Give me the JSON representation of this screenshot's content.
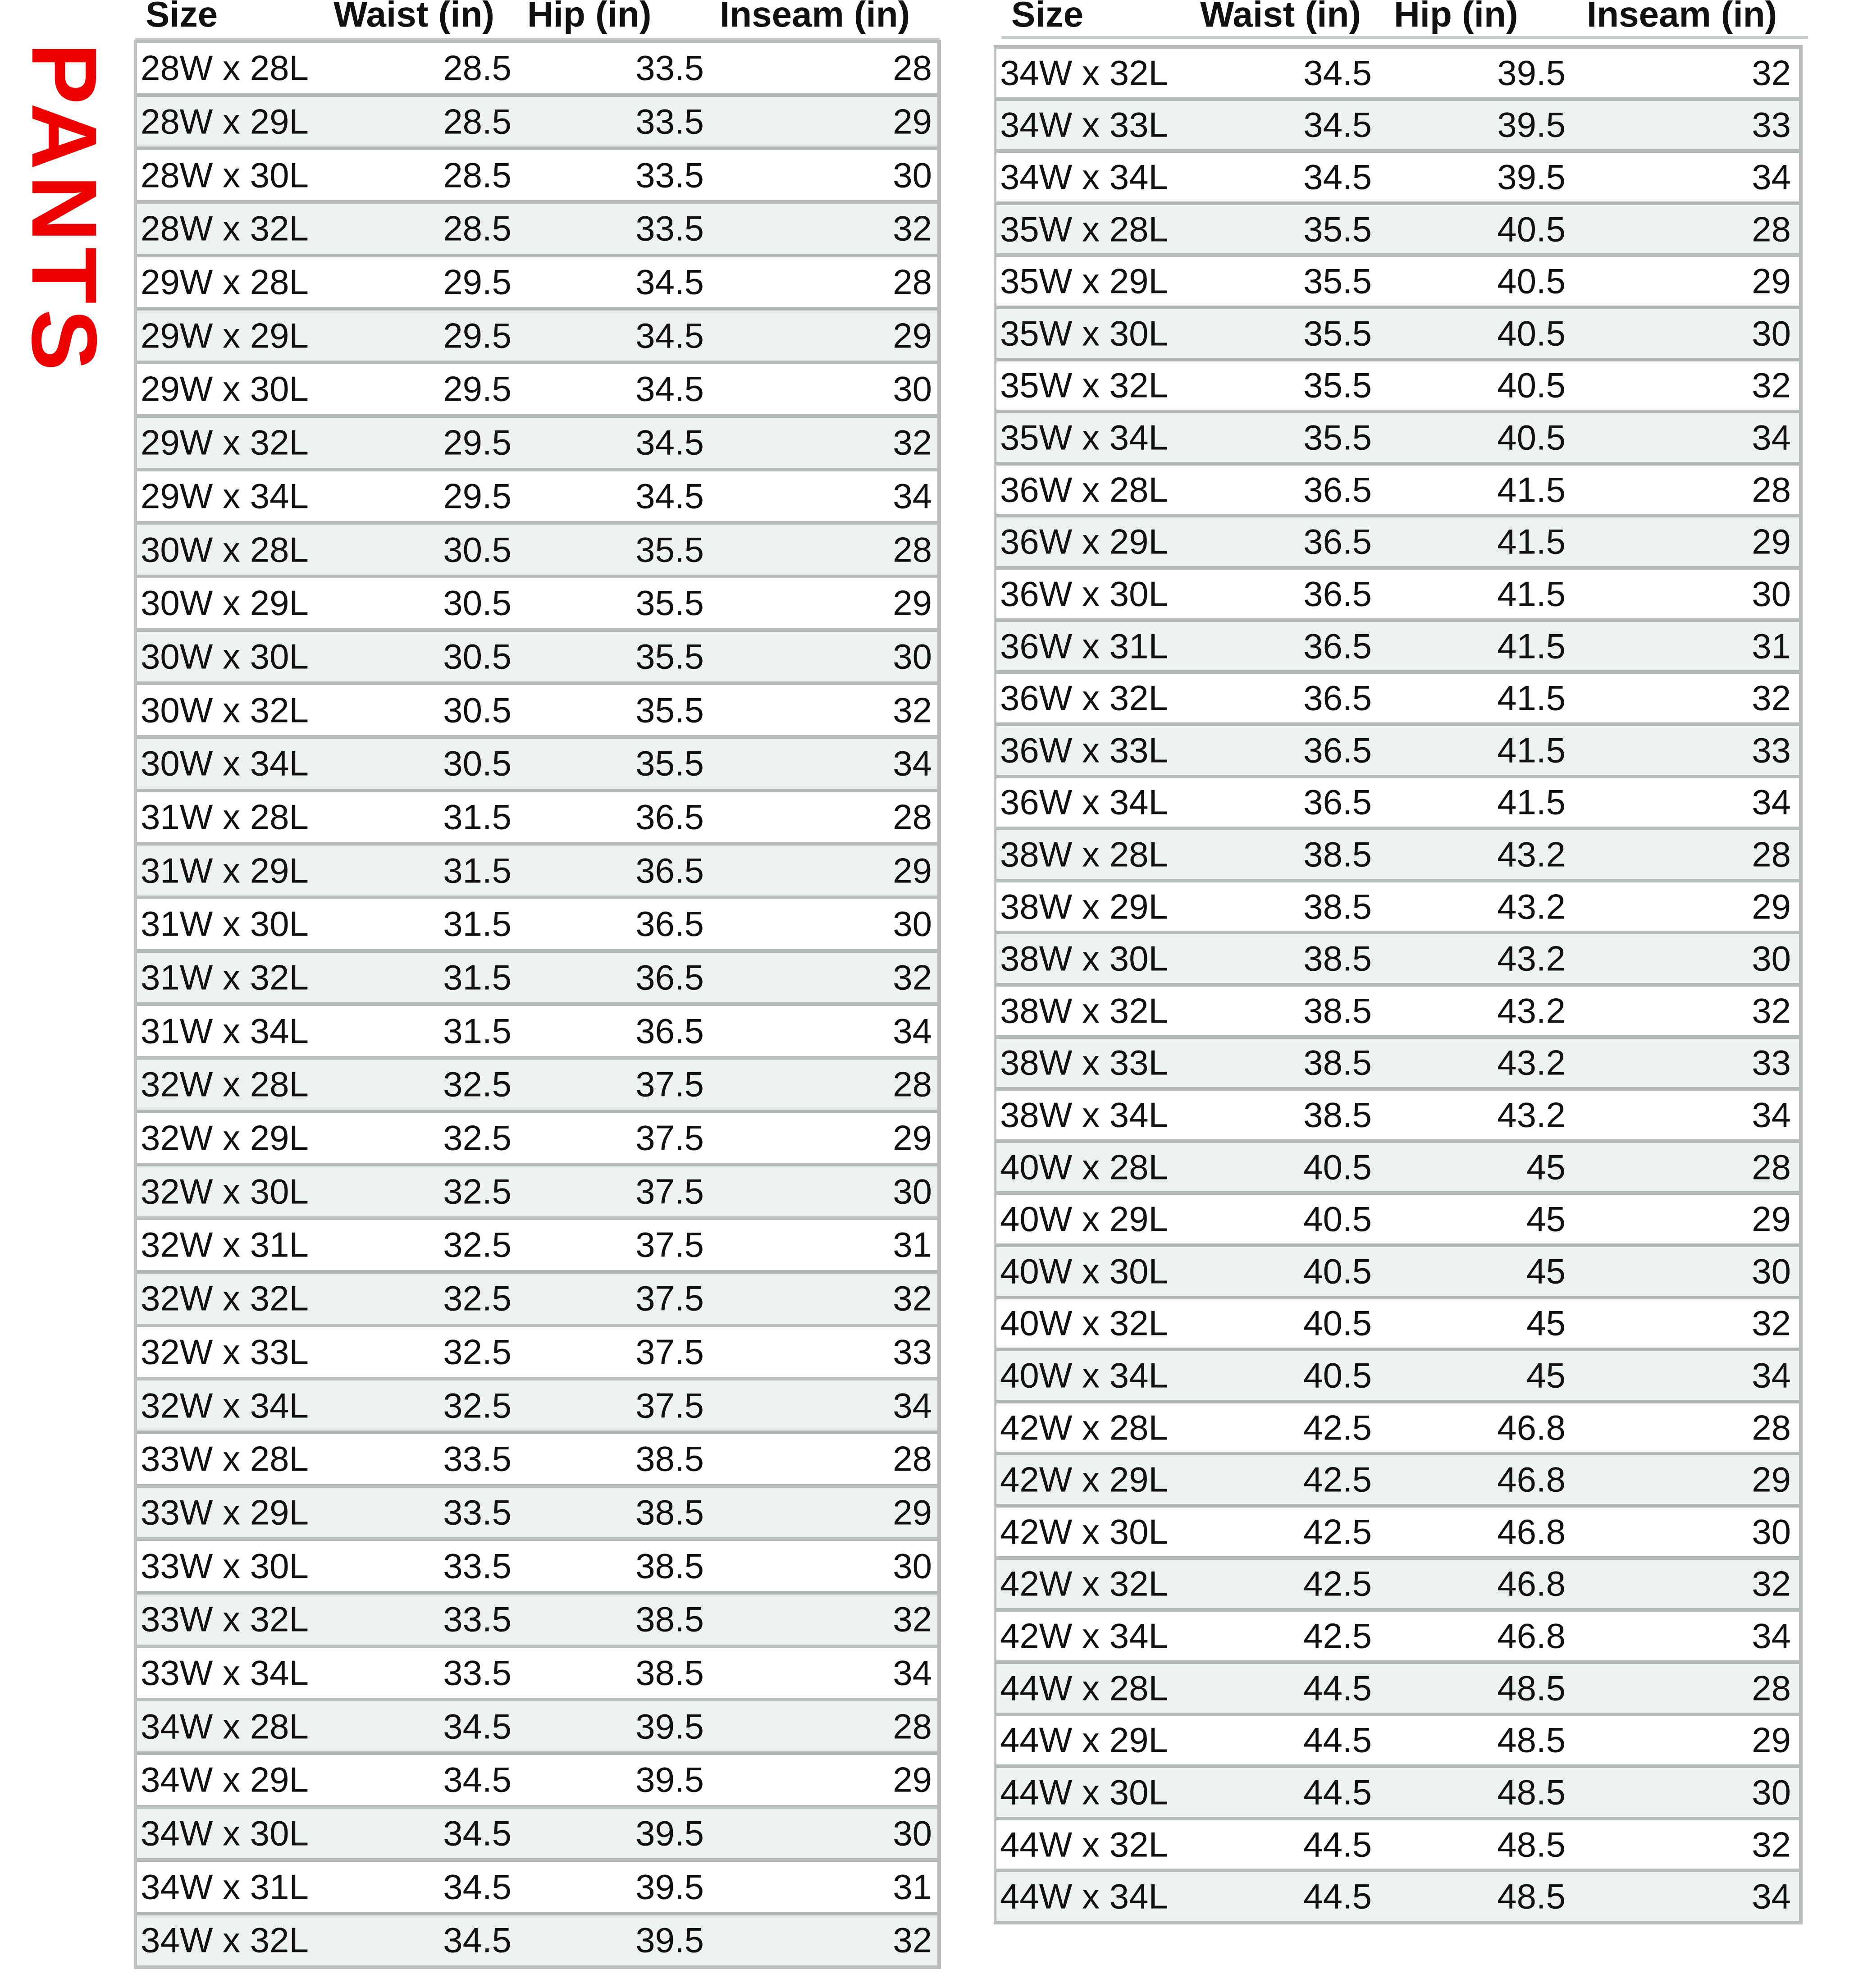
{
  "title": "PANTS",
  "colors": {
    "title": "#ee0000",
    "row_alt": "#eef1f1",
    "border": "#b5b9b9"
  },
  "headers": [
    "Size",
    "Waist (in)",
    "Hip (in)",
    "Inseam (in)"
  ],
  "left_table": [
    [
      "28W x 28L",
      "28.5",
      "33.5",
      "28"
    ],
    [
      "28W x 29L",
      "28.5",
      "33.5",
      "29"
    ],
    [
      "28W x 30L",
      "28.5",
      "33.5",
      "30"
    ],
    [
      "28W x 32L",
      "28.5",
      "33.5",
      "32"
    ],
    [
      "29W x 28L",
      "29.5",
      "34.5",
      "28"
    ],
    [
      "29W x 29L",
      "29.5",
      "34.5",
      "29"
    ],
    [
      "29W x 30L",
      "29.5",
      "34.5",
      "30"
    ],
    [
      "29W x 32L",
      "29.5",
      "34.5",
      "32"
    ],
    [
      "29W x 34L",
      "29.5",
      "34.5",
      "34"
    ],
    [
      "30W x 28L",
      "30.5",
      "35.5",
      "28"
    ],
    [
      "30W x 29L",
      "30.5",
      "35.5",
      "29"
    ],
    [
      "30W x 30L",
      "30.5",
      "35.5",
      "30"
    ],
    [
      "30W x 32L",
      "30.5",
      "35.5",
      "32"
    ],
    [
      "30W x 34L",
      "30.5",
      "35.5",
      "34"
    ],
    [
      "31W x 28L",
      "31.5",
      "36.5",
      "28"
    ],
    [
      "31W x 29L",
      "31.5",
      "36.5",
      "29"
    ],
    [
      "31W x 30L",
      "31.5",
      "36.5",
      "30"
    ],
    [
      "31W x 32L",
      "31.5",
      "36.5",
      "32"
    ],
    [
      "31W x 34L",
      "31.5",
      "36.5",
      "34"
    ],
    [
      "32W x 28L",
      "32.5",
      "37.5",
      "28"
    ],
    [
      "32W x 29L",
      "32.5",
      "37.5",
      "29"
    ],
    [
      "32W x 30L",
      "32.5",
      "37.5",
      "30"
    ],
    [
      "32W x 31L",
      "32.5",
      "37.5",
      "31"
    ],
    [
      "32W x 32L",
      "32.5",
      "37.5",
      "32"
    ],
    [
      "32W x 33L",
      "32.5",
      "37.5",
      "33"
    ],
    [
      "32W x 34L",
      "32.5",
      "37.5",
      "34"
    ],
    [
      "33W x 28L",
      "33.5",
      "38.5",
      "28"
    ],
    [
      "33W x 29L",
      "33.5",
      "38.5",
      "29"
    ],
    [
      "33W x 30L",
      "33.5",
      "38.5",
      "30"
    ],
    [
      "33W x 32L",
      "33.5",
      "38.5",
      "32"
    ],
    [
      "33W x 34L",
      "33.5",
      "38.5",
      "34"
    ],
    [
      "34W x 28L",
      "34.5",
      "39.5",
      "28"
    ],
    [
      "34W x 29L",
      "34.5",
      "39.5",
      "29"
    ],
    [
      "34W x 30L",
      "34.5",
      "39.5",
      "30"
    ],
    [
      "34W x 31L",
      "34.5",
      "39.5",
      "31"
    ],
    [
      "34W x 32L",
      "34.5",
      "39.5",
      "32"
    ]
  ],
  "right_table": [
    [
      "34W x 32L",
      "34.5",
      "39.5",
      "32"
    ],
    [
      "34W x 33L",
      "34.5",
      "39.5",
      "33"
    ],
    [
      "34W x 34L",
      "34.5",
      "39.5",
      "34"
    ],
    [
      "35W x 28L",
      "35.5",
      "40.5",
      "28"
    ],
    [
      "35W x 29L",
      "35.5",
      "40.5",
      "29"
    ],
    [
      "35W x 30L",
      "35.5",
      "40.5",
      "30"
    ],
    [
      "35W x 32L",
      "35.5",
      "40.5",
      "32"
    ],
    [
      "35W x 34L",
      "35.5",
      "40.5",
      "34"
    ],
    [
      "36W x 28L",
      "36.5",
      "41.5",
      "28"
    ],
    [
      "36W x 29L",
      "36.5",
      "41.5",
      "29"
    ],
    [
      "36W x 30L",
      "36.5",
      "41.5",
      "30"
    ],
    [
      "36W x 31L",
      "36.5",
      "41.5",
      "31"
    ],
    [
      "36W x 32L",
      "36.5",
      "41.5",
      "32"
    ],
    [
      "36W x 33L",
      "36.5",
      "41.5",
      "33"
    ],
    [
      "36W x 34L",
      "36.5",
      "41.5",
      "34"
    ],
    [
      "38W x 28L",
      "38.5",
      "43.2",
      "28"
    ],
    [
      "38W x 29L",
      "38.5",
      "43.2",
      "29"
    ],
    [
      "38W x 30L",
      "38.5",
      "43.2",
      "30"
    ],
    [
      "38W x 32L",
      "38.5",
      "43.2",
      "32"
    ],
    [
      "38W x 33L",
      "38.5",
      "43.2",
      "33"
    ],
    [
      "38W x 34L",
      "38.5",
      "43.2",
      "34"
    ],
    [
      "40W x 28L",
      "40.5",
      "45",
      "28"
    ],
    [
      "40W x 29L",
      "40.5",
      "45",
      "29"
    ],
    [
      "40W x 30L",
      "40.5",
      "45",
      "30"
    ],
    [
      "40W x 32L",
      "40.5",
      "45",
      "32"
    ],
    [
      "40W x 34L",
      "40.5",
      "45",
      "34"
    ],
    [
      "42W x 28L",
      "42.5",
      "46.8",
      "28"
    ],
    [
      "42W x 29L",
      "42.5",
      "46.8",
      "29"
    ],
    [
      "42W x 30L",
      "42.5",
      "46.8",
      "30"
    ],
    [
      "42W x 32L",
      "42.5",
      "46.8",
      "32"
    ],
    [
      "42W x 34L",
      "42.5",
      "46.8",
      "34"
    ],
    [
      "44W x 28L",
      "44.5",
      "48.5",
      "28"
    ],
    [
      "44W x 29L",
      "44.5",
      "48.5",
      "29"
    ],
    [
      "44W x 30L",
      "44.5",
      "48.5",
      "30"
    ],
    [
      "44W x 32L",
      "44.5",
      "48.5",
      "32"
    ],
    [
      "44W x 34L",
      "44.5",
      "48.5",
      "34"
    ]
  ]
}
